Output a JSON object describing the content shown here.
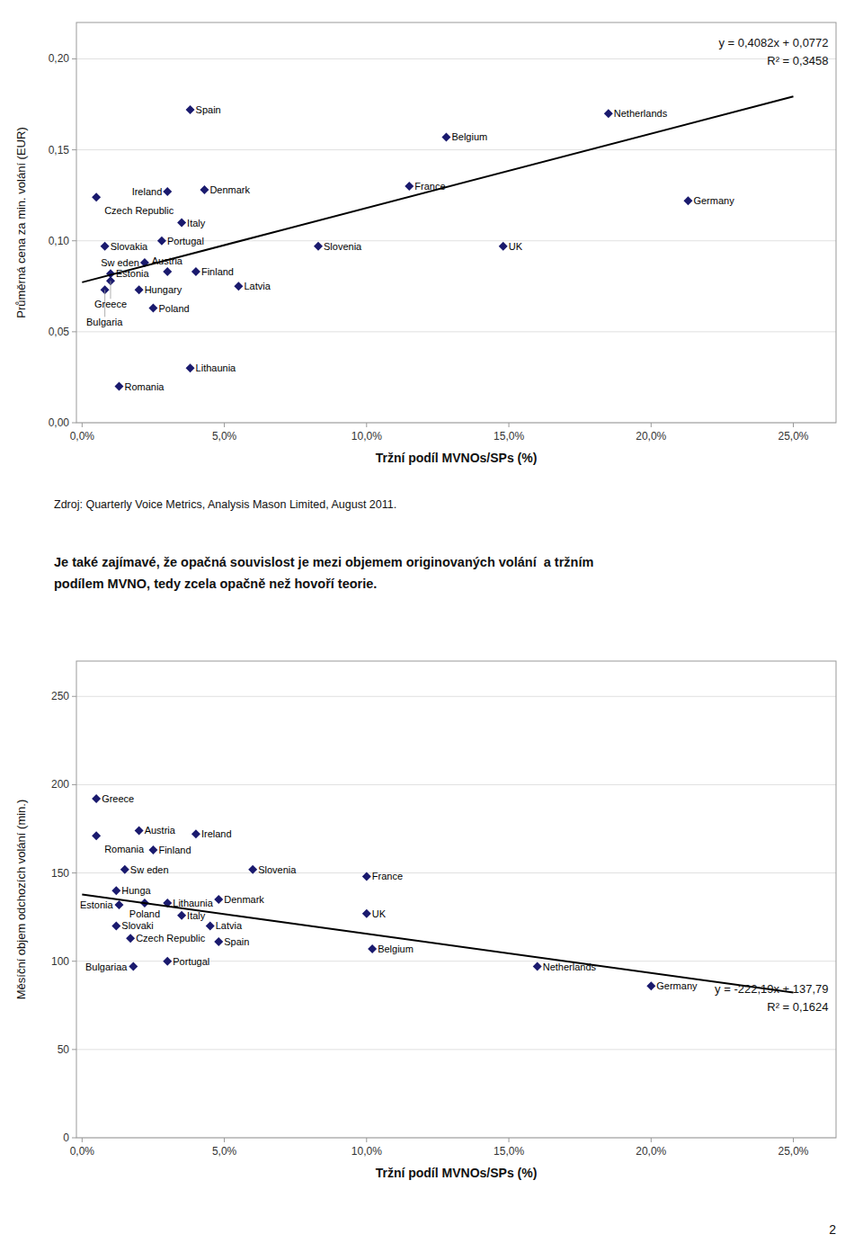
{
  "chart_data": [
    {
      "type": "scatter",
      "x_label": "Tržní podíl MVNOs/SPs (%)",
      "y_label": "Průměrná cena za min. volání (EUR)",
      "annotations": [
        "y = 0,4082x + 0,0772",
        "R² = 0,3458"
      ],
      "xlim": [
        -0.002,
        0.265
      ],
      "ylim": [
        0.0,
        0.22
      ],
      "xticks": [
        {
          "value": 0.0,
          "label": "0,0%"
        },
        {
          "value": 0.05,
          "label": "5,0%"
        },
        {
          "value": 0.1,
          "label": "10,0%"
        },
        {
          "value": 0.15,
          "label": "15,0%"
        },
        {
          "value": 0.2,
          "label": "20,0%"
        },
        {
          "value": 0.25,
          "label": "25,0%"
        }
      ],
      "yticks": [
        {
          "value": 0.0,
          "label": "0,00"
        },
        {
          "value": 0.05,
          "label": "0,05"
        },
        {
          "value": 0.1,
          "label": "0,10"
        },
        {
          "value": 0.15,
          "label": "0,15"
        },
        {
          "value": 0.2,
          "label": "0,20"
        }
      ],
      "grid": true,
      "series": [
        {
          "type": "scatter",
          "color": "#1a1a6e",
          "marker": "diamond",
          "labels": [
            "Czech Republic",
            "Ireland",
            "Denmark",
            "Spain",
            "Italy",
            "Slovakia",
            "Portugal",
            "Sw eden",
            "Estonia",
            "Greece",
            "Austria",
            "Finland",
            "Bulgaria",
            "Hungary",
            "Poland",
            "Latvia",
            "Lithaunia",
            "Romania",
            "Slovenia",
            "France",
            "Belgium",
            "UK",
            "Netherlands",
            "Germany"
          ],
          "x": [
            0.005,
            0.03,
            0.043,
            0.038,
            0.035,
            0.008,
            0.028,
            0.022,
            0.01,
            0.01,
            0.03,
            0.04,
            0.008,
            0.02,
            0.025,
            0.055,
            0.038,
            0.013,
            0.083,
            0.115,
            0.128,
            0.148,
            0.185,
            0.213
          ],
          "values": [
            0.124,
            0.127,
            0.128,
            0.172,
            0.11,
            0.097,
            0.1,
            0.088,
            0.082,
            0.078,
            0.083,
            0.083,
            0.073,
            0.073,
            0.063,
            0.075,
            0.03,
            0.02,
            0.097,
            0.13,
            0.157,
            0.097,
            0.17,
            0.122
          ]
        },
        {
          "type": "line",
          "color": "#000000",
          "x": [
            0.0,
            0.25
          ],
          "values": [
            0.0772,
            0.1793
          ]
        }
      ]
    },
    {
      "type": "scatter",
      "x_label": "Tržní podíl MVNOs/SPs (%)",
      "y_label": "Měsíční objem odchozích volání (min.)",
      "annotations": [
        "y = -222,19x + 137,79",
        "R² = 0,1624"
      ],
      "xlim": [
        -0.002,
        0.265
      ],
      "ylim": [
        0,
        270
      ],
      "xticks": [
        {
          "value": 0.0,
          "label": "0,0%"
        },
        {
          "value": 0.05,
          "label": "5,0%"
        },
        {
          "value": 0.1,
          "label": "10,0%"
        },
        {
          "value": 0.15,
          "label": "15,0%"
        },
        {
          "value": 0.2,
          "label": "20,0%"
        },
        {
          "value": 0.25,
          "label": "25,0%"
        }
      ],
      "yticks": [
        0,
        50,
        100,
        150,
        200,
        250
      ],
      "grid": true,
      "series": [
        {
          "type": "scatter",
          "color": "#1a1a6e",
          "marker": "diamond",
          "labels": [
            "Greece",
            "Romania",
            "Austria",
            "Sw eden",
            "Finland",
            "Ireland",
            "Slovenia",
            "Hunga",
            "Estonia",
            "Poland",
            "Lithaunia",
            "Italy",
            "Denmark",
            "Slovaki",
            "Czech Republic",
            "Latvia",
            "Spain",
            "Portugal",
            "Bulgariaa",
            "France",
            "UK",
            "Belgium",
            "Netherlands",
            "Germany"
          ],
          "x": [
            0.005,
            0.005,
            0.02,
            0.015,
            0.025,
            0.04,
            0.06,
            0.012,
            0.013,
            0.022,
            0.03,
            0.035,
            0.048,
            0.012,
            0.017,
            0.045,
            0.048,
            0.03,
            0.018,
            0.1,
            0.1,
            0.102,
            0.16,
            0.2
          ],
          "values": [
            192,
            171,
            174,
            152,
            163,
            172,
            152,
            140,
            132,
            133,
            133,
            126,
            135,
            120,
            113,
            120,
            111,
            100,
            97,
            148,
            127,
            107,
            97,
            86
          ]
        },
        {
          "type": "line",
          "color": "#000000",
          "x": [
            0.0,
            0.25
          ],
          "values": [
            137.79,
            82.24
          ]
        }
      ]
    }
  ],
  "source": "Zdroj: Quarterly Voice Metrics, Analysis Mason Limited, August 2011.",
  "paragraphs": [
    "Je také zajímavé, že opačná souvislost je mezi objemem originovaných volání  a tržním",
    "podílem MVNO, tedy zcela opačně než hovoří teorie."
  ],
  "page_number": "2"
}
